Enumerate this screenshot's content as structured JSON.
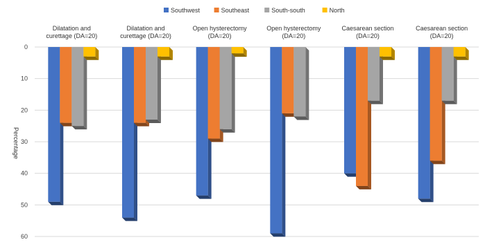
{
  "chart_data": {
    "type": "bar",
    "orientation": "vertical, inverted (values increase downward)",
    "categories": [
      [
        "Dilatation and",
        "curettage (DA=20)"
      ],
      [
        "Dilatation and",
        "curettage (DA=20)"
      ],
      [
        "Open hysterectomy",
        "(DA=20)"
      ],
      [
        "Open hysterectomy",
        "(DA=20)"
      ],
      [
        "Caesarean section",
        "(DA=20)"
      ],
      [
        "Caesarean section",
        "(DA=20)"
      ]
    ],
    "series": [
      {
        "name": "Southwest",
        "color": "#4472C4",
        "values": [
          49,
          54,
          47,
          59,
          40,
          48
        ]
      },
      {
        "name": "Southeast",
        "color": "#ED7D31",
        "values": [
          24,
          24,
          29,
          21,
          44,
          36
        ]
      },
      {
        "name": "South-south",
        "color": "#A5A5A5",
        "values": [
          25,
          23,
          26,
          22,
          17,
          17
        ]
      },
      {
        "name": "North",
        "color": "#FFC000",
        "values": [
          3,
          3,
          2,
          0,
          3,
          3
        ]
      }
    ],
    "ylabel": "Percentage",
    "ylim": [
      0,
      60
    ],
    "yticks": [
      "0",
      "10",
      "20",
      "30",
      "40",
      "50",
      "60"
    ],
    "grid": true,
    "legend_position": "top"
  }
}
